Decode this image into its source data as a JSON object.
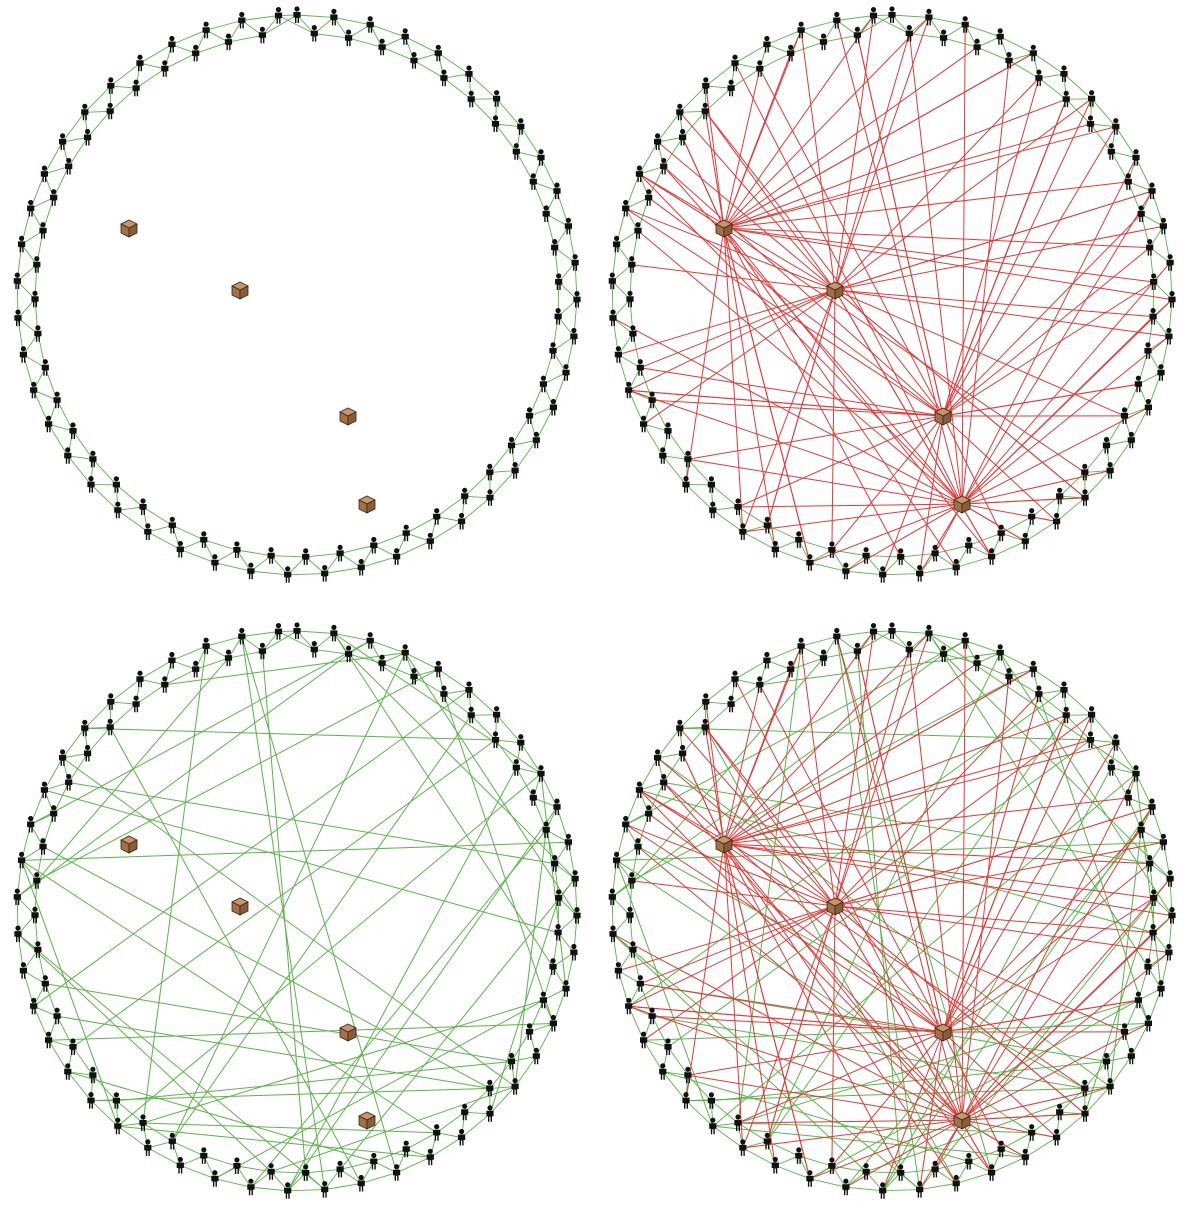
{
  "colors": {
    "ring_edge": "#5ab34a",
    "random_edge": "#5ab34a",
    "resource_edge": "#e03a3a",
    "person": "#111111",
    "box_fill": "#a0714a",
    "box_top": "#c8956b",
    "box_outline": "#3a2514"
  },
  "icons": {
    "person": "person-icon",
    "resource": "box-icon"
  },
  "network": {
    "people_count": 95,
    "resource_count": 4
  },
  "panels": [
    {
      "id": "tl",
      "ring": true,
      "random_edges": false,
      "resource_edges": false
    },
    {
      "id": "tr",
      "ring": true,
      "random_edges": false,
      "resource_edges": true
    },
    {
      "id": "bl",
      "ring": true,
      "random_edges": true,
      "resource_edges": false
    },
    {
      "id": "br",
      "ring": true,
      "random_edges": true,
      "resource_edges": true
    }
  ]
}
